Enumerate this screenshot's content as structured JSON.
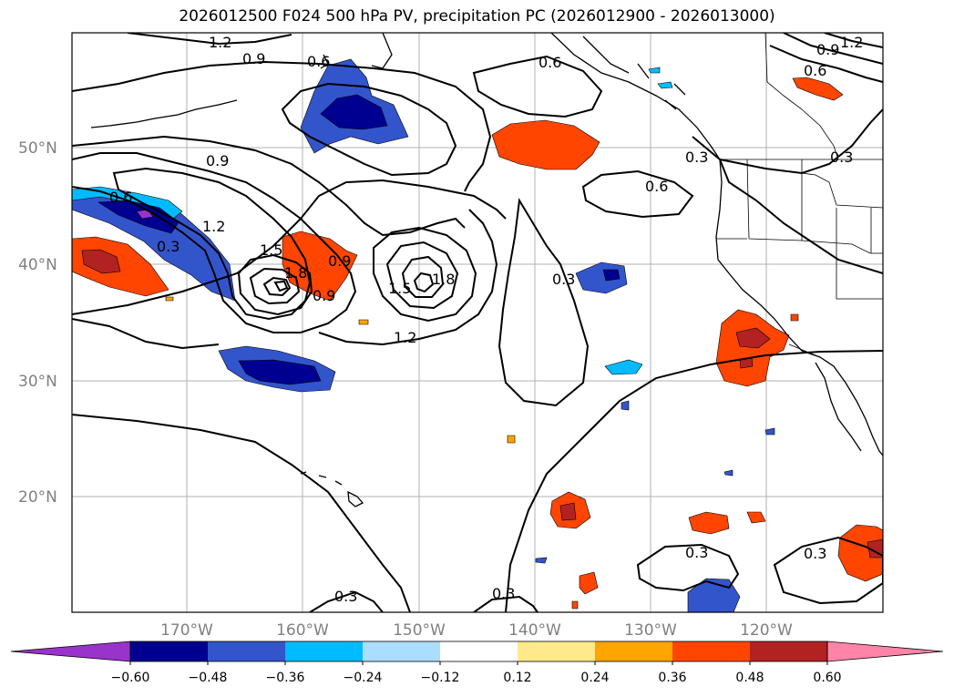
{
  "title": "2026012500 F024 500 hPa PV, precipitation PC (2026012900 - 2026013000)",
  "map": {
    "lat_labels": [
      "50°N",
      "40°N",
      "30°N",
      "20°N"
    ],
    "lon_labels": [
      "170°W",
      "160°W",
      "150°W",
      "140°W",
      "130°W",
      "120°W"
    ],
    "contour_labels": [
      "1.2",
      "0.9",
      "0.6",
      "0.6",
      "0.9",
      "0.6",
      "1.2",
      "0.9",
      "0.6",
      "0.6",
      "0.3",
      "0.3",
      "1.2",
      "1.5",
      "1.8",
      "1.5",
      "1.8",
      "1.2",
      "0.9",
      "0.9",
      "0.3",
      "0.3",
      "0.3",
      "0.3",
      "0.3",
      "0.3"
    ]
  },
  "colorbar": {
    "tick_labels": [
      "−0.60",
      "−0.48",
      "−0.36",
      "−0.24",
      "−0.12",
      "0.12",
      "0.24",
      "0.36",
      "0.48",
      "0.60"
    ],
    "colors": [
      "#9933cc",
      "#000090",
      "#3355cc",
      "#00bbff",
      "#aaddff",
      "#ffffff",
      "#ffe98a",
      "#ffa500",
      "#ff4500",
      "#b22222",
      "#ff85a8"
    ]
  }
}
